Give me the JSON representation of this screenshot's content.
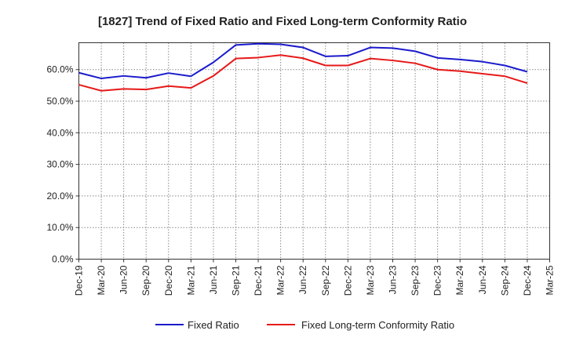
{
  "chart_data": {
    "type": "line",
    "title": "[1827]  Trend of Fixed Ratio and Fixed Long-term Conformity Ratio",
    "xlabel": "",
    "ylabel": "",
    "ylim": [
      0,
      68.5
    ],
    "yticks": [
      0,
      10,
      20,
      30,
      40,
      50,
      60
    ],
    "ytick_labels": [
      "0.0%",
      "10.0%",
      "20.0%",
      "30.0%",
      "40.0%",
      "50.0%",
      "60.0%"
    ],
    "grid": true,
    "legend_position": "bottom",
    "categories": [
      "Dec-19",
      "Mar-20",
      "Jun-20",
      "Sep-20",
      "Dec-20",
      "Mar-21",
      "Jun-21",
      "Sep-21",
      "Dec-21",
      "Mar-22",
      "Jun-22",
      "Sep-22",
      "Dec-22",
      "Mar-23",
      "Jun-23",
      "Sep-23",
      "Dec-23",
      "Mar-24",
      "Jun-24",
      "Sep-24",
      "Dec-24",
      "Mar-25"
    ],
    "series": [
      {
        "name": "Fixed Ratio",
        "color": "#1a1acc",
        "values": [
          59.0,
          57.2,
          58.0,
          57.4,
          58.9,
          57.9,
          62.3,
          67.8,
          68.2,
          68.0,
          67.0,
          64.2,
          64.4,
          67.0,
          66.8,
          65.8,
          63.7,
          63.2,
          62.5,
          61.3,
          59.3,
          null
        ]
      },
      {
        "name": "Fixed Long-term Conformity Ratio",
        "color": "#e61919",
        "values": [
          55.2,
          53.3,
          53.9,
          53.7,
          54.8,
          54.2,
          58.0,
          63.5,
          63.8,
          64.6,
          63.6,
          61.3,
          61.3,
          63.5,
          62.9,
          62.0,
          60.0,
          59.5,
          58.7,
          57.9,
          55.7,
          null
        ]
      }
    ]
  }
}
